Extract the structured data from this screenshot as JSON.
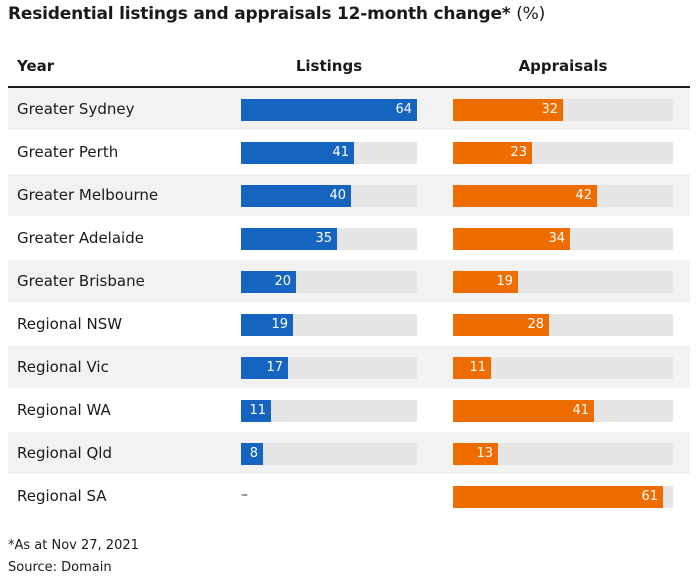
{
  "title": "Residential listings and appraisals 12-month change*",
  "title_unit": "(%)",
  "columns": {
    "row_label": "Year",
    "series1": "Listings",
    "series2": "Appraisals"
  },
  "colors": {
    "listings": "#1565c0",
    "appraisals": "#ef6c00",
    "track": "#e6e6e6"
  },
  "missing_marker": "–",
  "footnote": "*As at Nov 27, 2021",
  "source": "Source: Domain",
  "chart_data": {
    "type": "bar",
    "title": "Residential listings and appraisals 12-month change* (%)",
    "categories": [
      "Greater Sydney",
      "Greater Perth",
      "Greater Melbourne",
      "Greater Adelaide",
      "Greater Brisbane",
      "Regional NSW",
      "Regional Vic",
      "Regional WA",
      "Regional Qld",
      "Regional SA"
    ],
    "series": [
      {
        "name": "Listings",
        "values": [
          64,
          41,
          40,
          35,
          20,
          19,
          17,
          11,
          8,
          null
        ]
      },
      {
        "name": "Appraisals",
        "values": [
          32,
          23,
          42,
          34,
          19,
          28,
          11,
          41,
          13,
          61
        ]
      }
    ],
    "xlim": [
      0,
      64
    ],
    "orientation": "horizontal",
    "grid": false,
    "legend": "column headers"
  }
}
